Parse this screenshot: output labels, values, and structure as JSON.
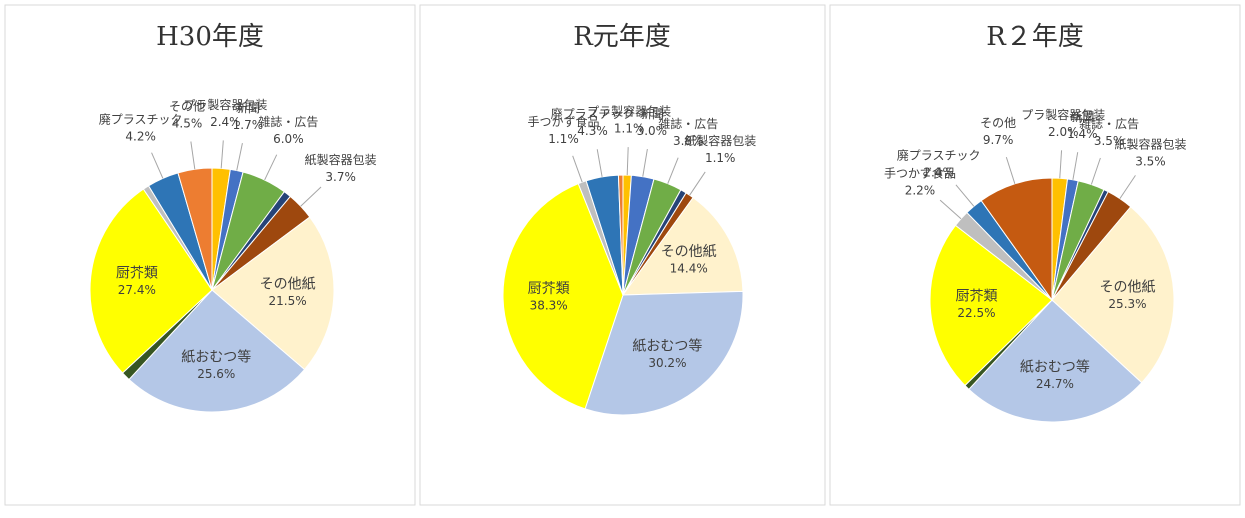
{
  "chart_data": [
    {
      "type": "pie",
      "title": "H30年度",
      "categories": [
        "プラ製容器包装",
        "新聞",
        "雑誌・広告",
        null,
        "紙製容器包装",
        "その他紙",
        "紙おむつ等",
        null,
        "厨芥類",
        null,
        "廃プラスチック",
        "その他"
      ],
      "values": [
        2.4,
        1.7,
        6.0,
        1.0,
        3.7,
        21.5,
        25.6,
        1.2,
        27.4,
        0.8,
        4.2,
        4.5
      ],
      "value_labels": [
        "2.4%",
        "1.7%",
        "6.0%",
        null,
        "3.7%",
        "21.5%",
        "25.6%",
        null,
        "27.4%",
        null,
        "4.2%",
        "4.5%"
      ],
      "colors": [
        "#ffc000",
        "#4472c4",
        "#70ad47",
        "#264478",
        "#9e480e",
        "#fff2cc",
        "#b4c7e7",
        "#375623",
        "#ffff00",
        "#bfbfbf",
        "#2e75b6",
        "#ed7d31"
      ]
    },
    {
      "type": "pie",
      "title": "R元年度",
      "categories": [
        "プラ製容器包装",
        "新聞",
        "雑誌・広告",
        null,
        "紙製容器包装",
        "その他紙",
        "紙おむつ等",
        "厨芥類",
        "手つかず食品",
        "廃プラスチック",
        null
      ],
      "values": [
        1.1,
        3.0,
        3.8,
        0.8,
        1.1,
        14.4,
        30.2,
        38.3,
        1.1,
        4.3,
        0.6
      ],
      "value_labels": [
        "1.1%",
        "3.0%",
        "3.8%",
        null,
        "1.1%",
        "14.4%",
        "30.2%",
        "38.3%",
        "1.1%",
        "4.3%",
        null
      ],
      "colors": [
        "#ffc000",
        "#4472c4",
        "#70ad47",
        "#264478",
        "#9e480e",
        "#fff2cc",
        "#b4c7e7",
        "#ffff00",
        "#bfbfbf",
        "#2e75b6",
        "#ed7d31"
      ]
    },
    {
      "type": "pie",
      "title": "R２年度",
      "categories": [
        "プラ製容器包装",
        "新聞",
        "雑誌・広告",
        null,
        "紙製容器包装",
        "その他紙",
        "紙おむつ等",
        null,
        "厨芥類",
        "手つかず食品",
        "廃プラスチック",
        "その他"
      ],
      "values": [
        2.0,
        1.4,
        3.5,
        0.6,
        3.5,
        25.3,
        24.7,
        0.7,
        22.5,
        2.2,
        2.4,
        9.7
      ],
      "value_labels": [
        "2.0%",
        "1.4%",
        "3.5%",
        null,
        "3.5%",
        "25.3%",
        "24.7%",
        null,
        "22.5%",
        "2.2%",
        "2.4%",
        "9.7%"
      ],
      "colors": [
        "#ffc000",
        "#4472c4",
        "#70ad47",
        "#264478",
        "#9e480e",
        "#fff2cc",
        "#b4c7e7",
        "#375623",
        "#ffff00",
        "#bfbfbf",
        "#2e75b6",
        "#c55a11"
      ]
    }
  ]
}
